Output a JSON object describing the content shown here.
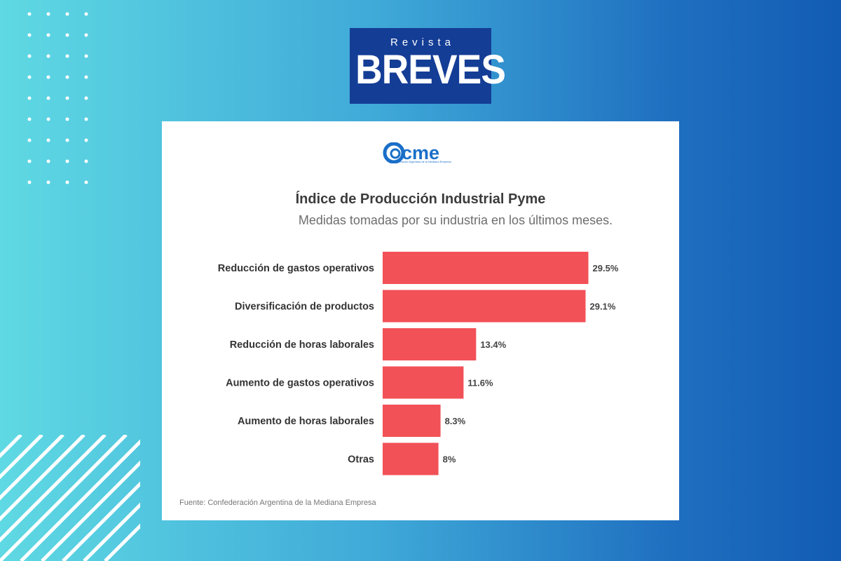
{
  "brand": {
    "small": "Revista",
    "big": "BREVES"
  },
  "logo": {
    "text": "cme",
    "tagline": "Confederación Argentina de la Mediana Empresa"
  },
  "colors": {
    "bar": "#f25157",
    "logo_bg": "#143d96",
    "came_blue": "#1a6fc8"
  },
  "chart_data": {
    "type": "bar",
    "orientation": "horizontal",
    "title": "Índice de Producción Industrial Pyme",
    "subtitle": "Medidas tomadas por su industria en los últimos meses.",
    "categories": [
      "Reducción de gastos operativos",
      "Diversificación de productos",
      "Reducción de horas laborales",
      "Aumento de gastos operativos",
      "Aumento de horas laborales",
      "Otras"
    ],
    "values": [
      29.5,
      29.1,
      13.4,
      11.6,
      8.3,
      8
    ],
    "value_labels": [
      "29.5%",
      "29.1%",
      "13.4%",
      "11.6%",
      "8.3%",
      "8%"
    ],
    "xlim": [
      0,
      30
    ],
    "grid": false
  },
  "source": "Fuente: Confederación Argentina de la Mediana Empresa"
}
